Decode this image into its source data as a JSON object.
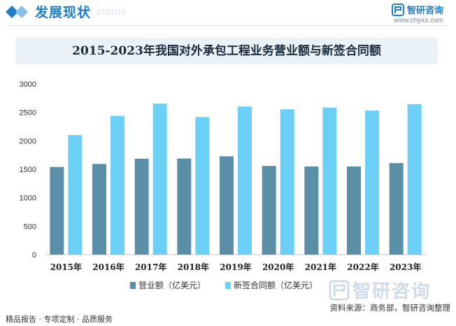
{
  "header": {
    "section_title": "发展现状",
    "ghost_text": "ent status",
    "brand_name": "智研咨询",
    "brand_url": "www.chyxx.com"
  },
  "chart_data": {
    "type": "bar",
    "title": "2015-2023年我国对外承包工程业务营业额与新签合同额",
    "categories": [
      "2015年",
      "2016年",
      "2017年",
      "2018年",
      "2019年",
      "2020年",
      "2021年",
      "2022年",
      "2023年"
    ],
    "series": [
      {
        "name": "营业额（亿美元）",
        "color": "#5b8fa8",
        "values": [
          1541,
          1594,
          1686,
          1690,
          1729,
          1559,
          1549,
          1550,
          1609
        ]
      },
      {
        "name": "新签合同额（亿美元）",
        "color": "#6ccff6",
        "values": [
          2101,
          2440,
          2653,
          2418,
          2603,
          2555,
          2585,
          2531,
          2645
        ]
      }
    ],
    "y_ticks": [
      0,
      500,
      1000,
      1500,
      2000,
      2500,
      3000
    ],
    "ylim": [
      0,
      3000
    ],
    "grid": false,
    "legend_position": "bottom"
  },
  "footer": {
    "left": "精品报告 · 专项定制 · 品质服务",
    "source": "资料来源：商务部，智研咨询整理",
    "watermark": "智研咨询"
  }
}
